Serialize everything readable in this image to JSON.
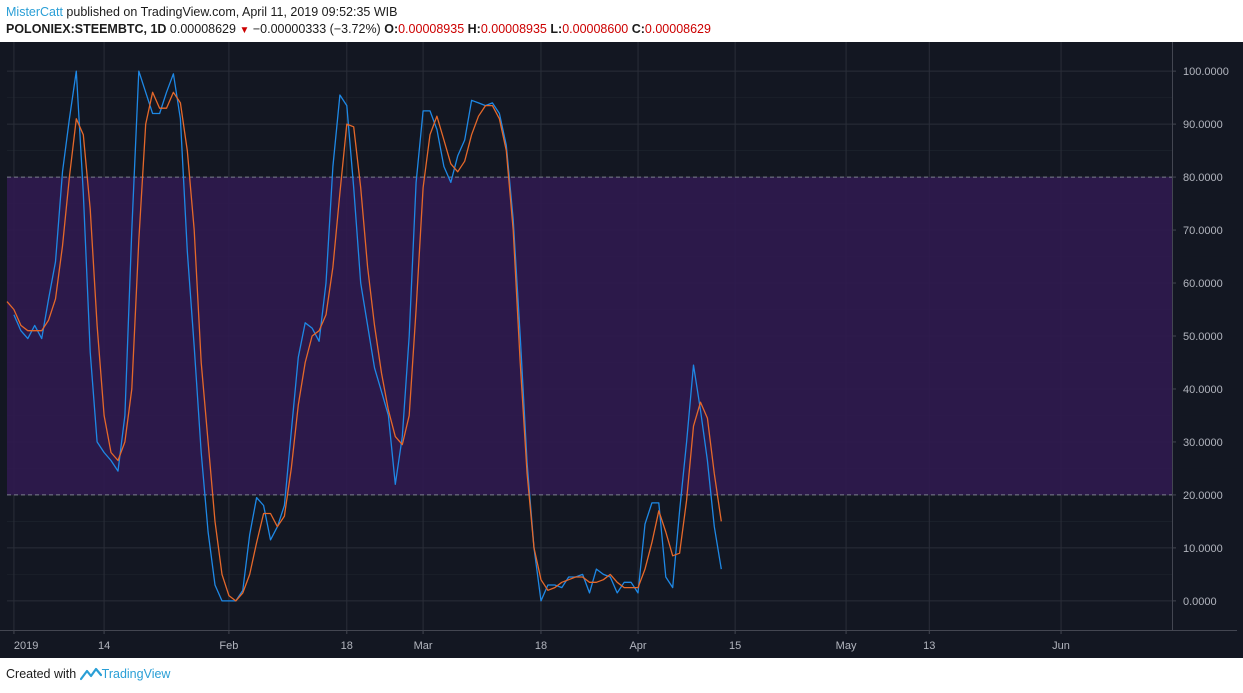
{
  "header": {
    "author": "MisterCatt",
    "published": " published on TradingView.com, April 11, 2019 09:52:35 WIB",
    "symbol": "POLONIEX:STEEMBTC, 1D",
    "last": "0.00008629",
    "change_icon": "down-triangle-icon",
    "change": "−0.00000333 (−3.72%)",
    "o_label": "O:",
    "o_value": "0.00008935",
    "h_label": "H:",
    "h_value": "0.00008935",
    "l_label": "L:",
    "l_value": "0.00008600",
    "c_label": "C:",
    "c_value": "0.00008629"
  },
  "footer": {
    "created_with": "Created with",
    "brand": "TradingView",
    "brand_icon": "tradingview-logo-icon"
  },
  "colors": {
    "background": "#131722",
    "band": "#2f1a4e",
    "k_line": "#1e88e5",
    "d_line": "#e5682a",
    "grid": "#2a2e39",
    "axis_text": "#b2b5be"
  },
  "chart_data": {
    "type": "line",
    "x_tick_labels": [
      "2019",
      "14",
      "Feb",
      "18",
      "Mar",
      "18",
      "Apr",
      "15",
      "May",
      "13",
      "Jun"
    ],
    "x_tick_dates": [
      "2019-01-01",
      "2019-01-14",
      "2019-02-01",
      "2019-02-18",
      "2019-03-01",
      "2019-03-18",
      "2019-04-01",
      "2019-04-15",
      "2019-05-01",
      "2019-05-13",
      "2019-06-01"
    ],
    "x_range": [
      "2018-12-31",
      "2019-06-17"
    ],
    "y_tick_labels": [
      "0.0000",
      "10.0000",
      "20.0000",
      "30.0000",
      "40.0000",
      "50.0000",
      "60.0000",
      "70.0000",
      "80.0000",
      "90.0000",
      "100.0000"
    ],
    "y_ticks": [
      0,
      10,
      20,
      30,
      40,
      50,
      60,
      70,
      80,
      90,
      100
    ],
    "ylim": [
      -5.5,
      105.5
    ],
    "band": [
      20,
      80
    ],
    "grid": true,
    "series": [
      {
        "color": "#1e88e5",
        "values": [
          [
            1,
            54
          ],
          [
            2,
            51
          ],
          [
            3,
            49.5
          ],
          [
            4,
            52
          ],
          [
            5,
            49.5
          ],
          [
            6,
            57
          ],
          [
            7,
            64
          ],
          [
            8,
            81
          ],
          [
            9,
            91
          ],
          [
            10,
            100
          ],
          [
            11,
            77
          ],
          [
            12,
            47
          ],
          [
            13,
            30
          ],
          [
            14,
            28
          ],
          [
            15,
            26.5
          ],
          [
            16,
            24.5
          ],
          [
            17,
            35
          ],
          [
            18,
            70
          ],
          [
            19,
            100
          ],
          [
            20,
            96
          ],
          [
            21,
            92
          ],
          [
            22,
            92
          ],
          [
            23,
            96
          ],
          [
            24,
            99.5
          ],
          [
            25,
            91
          ],
          [
            26,
            66
          ],
          [
            27,
            48
          ],
          [
            28,
            28
          ],
          [
            29,
            13
          ],
          [
            30,
            3
          ],
          [
            31,
            0
          ],
          [
            32,
            0
          ],
          [
            33,
            0
          ],
          [
            34,
            2
          ],
          [
            35,
            12.5
          ],
          [
            36,
            19.5
          ],
          [
            37,
            18
          ],
          [
            38,
            11.5
          ],
          [
            39,
            14
          ],
          [
            40,
            18
          ],
          [
            41,
            32
          ],
          [
            42,
            46
          ],
          [
            43,
            52.5
          ],
          [
            44,
            51.5
          ],
          [
            45,
            49
          ],
          [
            46,
            60
          ],
          [
            47,
            82
          ],
          [
            48,
            95.5
          ],
          [
            49,
            93.5
          ],
          [
            50,
            78
          ],
          [
            51,
            60
          ],
          [
            52,
            52
          ],
          [
            53,
            44
          ],
          [
            54,
            39.5
          ],
          [
            55,
            35
          ],
          [
            56,
            22
          ],
          [
            57,
            31
          ],
          [
            58,
            50
          ],
          [
            59,
            79
          ],
          [
            60,
            92.5
          ],
          [
            61,
            92.5
          ],
          [
            62,
            89
          ],
          [
            63,
            82
          ],
          [
            64,
            79
          ],
          [
            65,
            84
          ],
          [
            66,
            87
          ],
          [
            67,
            94.5
          ],
          [
            68,
            94
          ],
          [
            69,
            93.5
          ],
          [
            70,
            94
          ],
          [
            71,
            92
          ],
          [
            72,
            86
          ],
          [
            73,
            72
          ],
          [
            74,
            50
          ],
          [
            75,
            26
          ],
          [
            76,
            10
          ],
          [
            77,
            0
          ],
          [
            78,
            3
          ],
          [
            79,
            3
          ],
          [
            80,
            2.5
          ],
          [
            81,
            4.5
          ],
          [
            82,
            4.5
          ],
          [
            83,
            5
          ],
          [
            84,
            1.5
          ],
          [
            85,
            6
          ],
          [
            86,
            5
          ],
          [
            87,
            4.5
          ],
          [
            88,
            1.5
          ],
          [
            89,
            3.5
          ],
          [
            90,
            3.5
          ],
          [
            91,
            1.5
          ],
          [
            92,
            14.5
          ],
          [
            93,
            18.5
          ],
          [
            94,
            18.5
          ],
          [
            95,
            4.5
          ],
          [
            96,
            2.5
          ],
          [
            97,
            17
          ],
          [
            98,
            30
          ],
          [
            99,
            44.5
          ],
          [
            100,
            36
          ],
          [
            101,
            26.5
          ],
          [
            102,
            14
          ],
          [
            103,
            6
          ]
        ]
      },
      {
        "color": "#e5682a",
        "values": [
          [
            0,
            56.5
          ],
          [
            1,
            55
          ],
          [
            2,
            52
          ],
          [
            3,
            51
          ],
          [
            4,
            51
          ],
          [
            5,
            51
          ],
          [
            6,
            53
          ],
          [
            7,
            57
          ],
          [
            8,
            67
          ],
          [
            9,
            80
          ],
          [
            10,
            91
          ],
          [
            11,
            88
          ],
          [
            12,
            74
          ],
          [
            13,
            52
          ],
          [
            14,
            35
          ],
          [
            15,
            28
          ],
          [
            16,
            26.5
          ],
          [
            17,
            30
          ],
          [
            18,
            40
          ],
          [
            19,
            68
          ],
          [
            20,
            90
          ],
          [
            21,
            96
          ],
          [
            22,
            93
          ],
          [
            23,
            93
          ],
          [
            24,
            96
          ],
          [
            25,
            94
          ],
          [
            26,
            85
          ],
          [
            27,
            70
          ],
          [
            28,
            45
          ],
          [
            29,
            30
          ],
          [
            30,
            15
          ],
          [
            31,
            5
          ],
          [
            32,
            1
          ],
          [
            33,
            0
          ],
          [
            34,
            1.5
          ],
          [
            35,
            5
          ],
          [
            36,
            11
          ],
          [
            37,
            16.5
          ],
          [
            38,
            16.5
          ],
          [
            39,
            14
          ],
          [
            40,
            16
          ],
          [
            41,
            25
          ],
          [
            42,
            37
          ],
          [
            43,
            45
          ],
          [
            44,
            50
          ],
          [
            45,
            51
          ],
          [
            46,
            54
          ],
          [
            47,
            63
          ],
          [
            48,
            77
          ],
          [
            49,
            90
          ],
          [
            50,
            89.5
          ],
          [
            51,
            78
          ],
          [
            52,
            63
          ],
          [
            53,
            52
          ],
          [
            54,
            43
          ],
          [
            55,
            36
          ],
          [
            56,
            31
          ],
          [
            57,
            29.5
          ],
          [
            58,
            35
          ],
          [
            59,
            55
          ],
          [
            60,
            78
          ],
          [
            61,
            88
          ],
          [
            62,
            91.5
          ],
          [
            63,
            87
          ],
          [
            64,
            82.5
          ],
          [
            65,
            81
          ],
          [
            66,
            83
          ],
          [
            67,
            88
          ],
          [
            68,
            91.5
          ],
          [
            69,
            93.5
          ],
          [
            70,
            93.5
          ],
          [
            71,
            91
          ],
          [
            72,
            85
          ],
          [
            73,
            70
          ],
          [
            74,
            45
          ],
          [
            75,
            24
          ],
          [
            76,
            10
          ],
          [
            77,
            4
          ],
          [
            78,
            2
          ],
          [
            79,
            2.5
          ],
          [
            80,
            3.5
          ],
          [
            81,
            4
          ],
          [
            82,
            4.5
          ],
          [
            83,
            4.5
          ],
          [
            84,
            3.5
          ],
          [
            85,
            3.5
          ],
          [
            86,
            4
          ],
          [
            87,
            5
          ],
          [
            88,
            3.5
          ],
          [
            89,
            2.5
          ],
          [
            90,
            2.5
          ],
          [
            91,
            2.5
          ],
          [
            92,
            6
          ],
          [
            93,
            11
          ],
          [
            94,
            17
          ],
          [
            95,
            13
          ],
          [
            96,
            8.5
          ],
          [
            97,
            9
          ],
          [
            98,
            19
          ],
          [
            99,
            33
          ],
          [
            100,
            37.5
          ],
          [
            101,
            34.5
          ],
          [
            102,
            24
          ],
          [
            103,
            15
          ]
        ]
      }
    ]
  }
}
